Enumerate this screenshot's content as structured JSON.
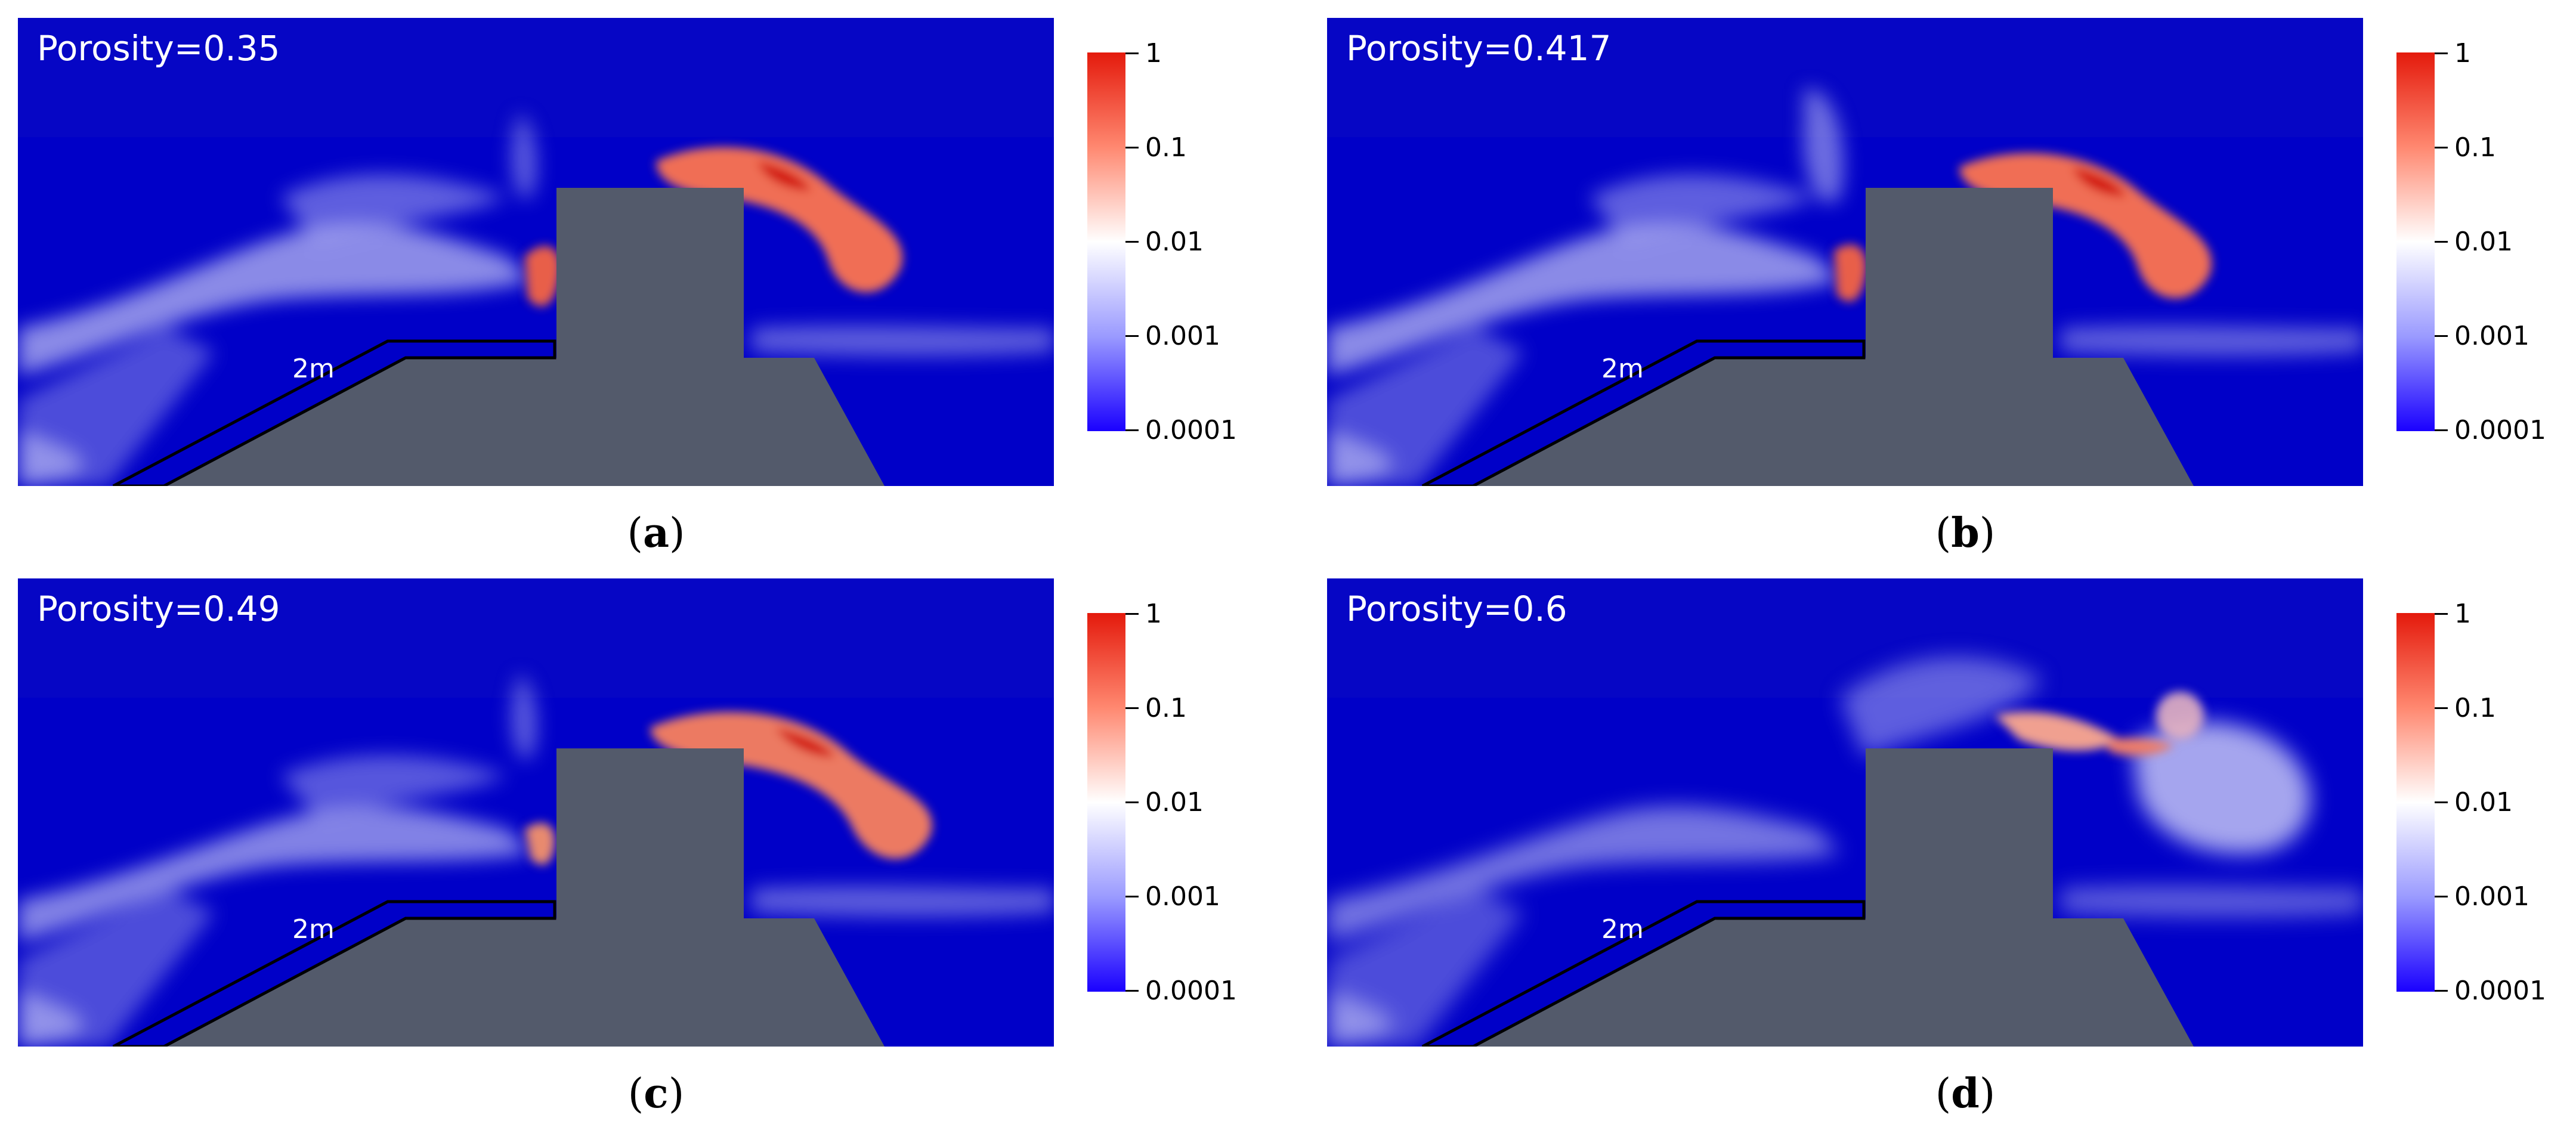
{
  "panels": [
    {
      "porosity_label": "Porosity=0.35",
      "caption_open": "(",
      "caption_letter": "a",
      "caption_close": ")"
    },
    {
      "porosity_label": "Porosity=0.417",
      "caption_open": "(",
      "caption_letter": "b",
      "caption_close": ")"
    },
    {
      "porosity_label": "Porosity=0.49",
      "caption_open": "(",
      "caption_letter": "c",
      "caption_close": ")"
    },
    {
      "porosity_label": "Porosity=0.6",
      "caption_open": "(",
      "caption_letter": "d",
      "caption_close": ")"
    }
  ],
  "slope_label": "2m",
  "colorbar": {
    "ticks": [
      "1",
      "0.1",
      "0.01",
      "0.001",
      "0.0001"
    ],
    "colors": {
      "max": "#e41a0c",
      "mid": "#ffffff",
      "min": "#1a00ff"
    },
    "scale": "log"
  },
  "colors": {
    "background": "#0000c8",
    "structure": "#535a6b",
    "outline": "#000000"
  }
}
